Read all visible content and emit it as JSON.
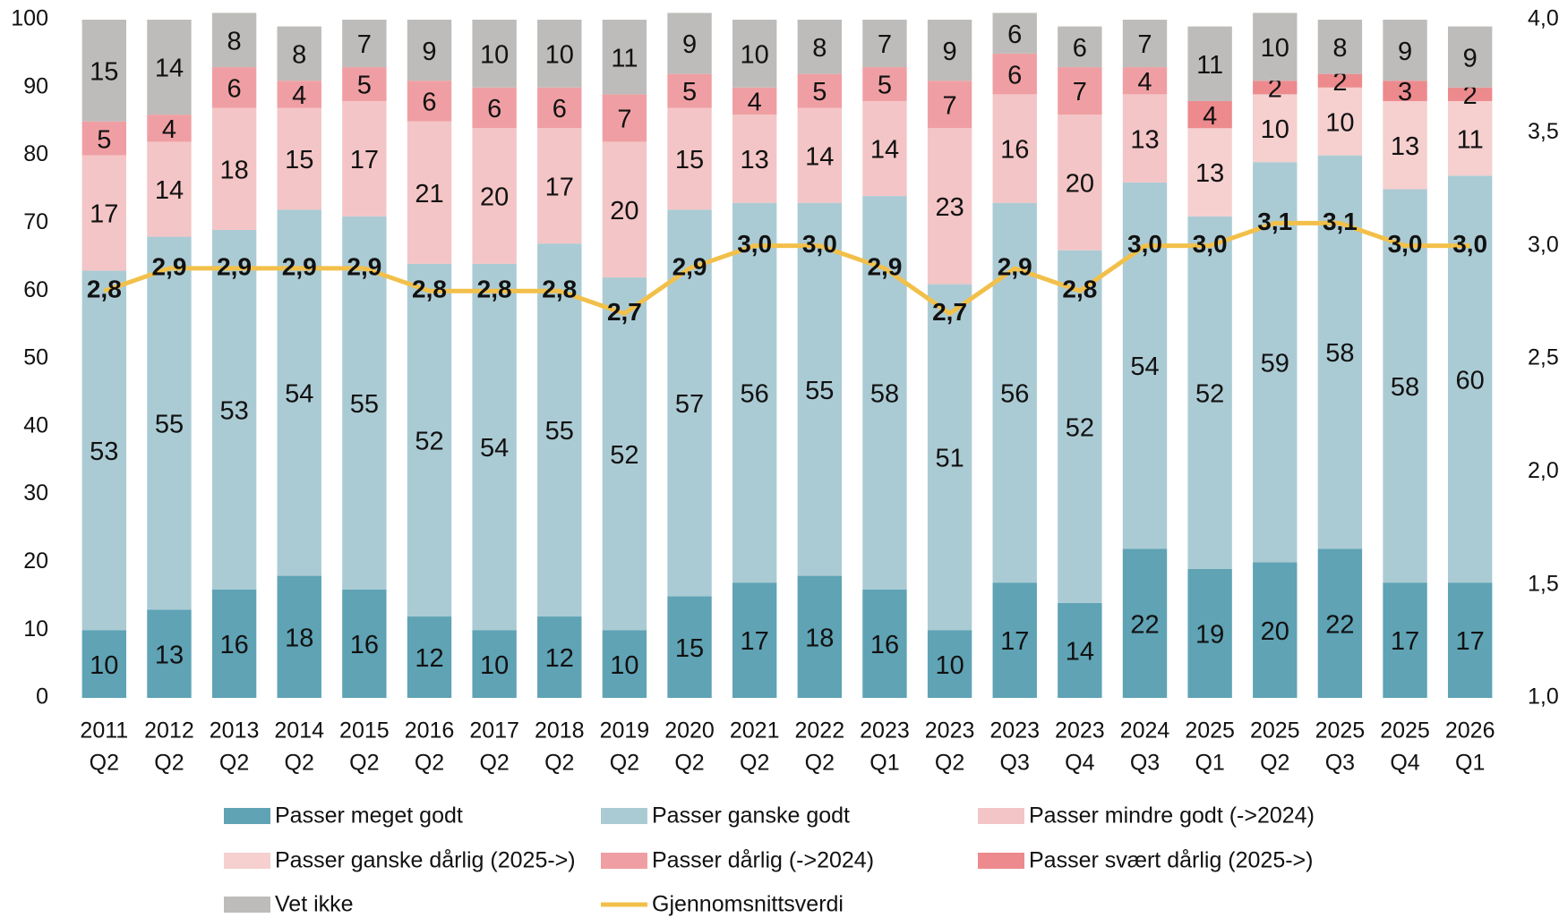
{
  "chart_data": {
    "type": "bar",
    "categories": [
      [
        "2011",
        "Q2"
      ],
      [
        "2012",
        "Q2"
      ],
      [
        "2013",
        "Q2"
      ],
      [
        "2014",
        "Q2"
      ],
      [
        "2015",
        "Q2"
      ],
      [
        "2016",
        "Q2"
      ],
      [
        "2017",
        "Q2"
      ],
      [
        "2018",
        "Q2"
      ],
      [
        "2019",
        "Q2"
      ],
      [
        "2020",
        "Q2"
      ],
      [
        "2021",
        "Q2"
      ],
      [
        "2022",
        "Q2"
      ],
      [
        "2023",
        "Q1"
      ],
      [
        "2023",
        "Q2"
      ],
      [
        "2023",
        "Q3"
      ],
      [
        "2023",
        "Q4"
      ],
      [
        "2024",
        "Q3"
      ],
      [
        "2025",
        "Q1"
      ],
      [
        "2025",
        "Q2"
      ],
      [
        "2025",
        "Q3"
      ],
      [
        "2025",
        "Q4"
      ],
      [
        "2026",
        "Q1"
      ]
    ],
    "series": [
      {
        "name": "Passer meget godt",
        "color": "#5fa3b5",
        "values": [
          10,
          13,
          16,
          18,
          16,
          12,
          10,
          12,
          10,
          15,
          17,
          18,
          16,
          10,
          17,
          14,
          22,
          19,
          20,
          22,
          17,
          17
        ]
      },
      {
        "name": "Passer ganske godt",
        "color": "#abcbd4",
        "values": [
          53,
          55,
          53,
          54,
          55,
          52,
          54,
          55,
          52,
          57,
          56,
          55,
          58,
          51,
          56,
          52,
          54,
          52,
          59,
          58,
          58,
          60
        ]
      },
      {
        "name": "Passer mindre godt (->2024)",
        "color": "#f4c5c6",
        "values": [
          17,
          14,
          18,
          15,
          17,
          21,
          20,
          17,
          20,
          15,
          13,
          14,
          14,
          23,
          16,
          20,
          13,
          null,
          null,
          null,
          null,
          null
        ]
      },
      {
        "name": "Passer ganske dårlig (2025->)",
        "color": "#f6cfcf",
        "values": [
          null,
          null,
          null,
          null,
          null,
          null,
          null,
          null,
          null,
          null,
          null,
          null,
          null,
          null,
          null,
          null,
          null,
          13,
          10,
          10,
          13,
          11
        ]
      },
      {
        "name": "Passer dårlig (->2024)",
        "color": "#ef9fa3",
        "values": [
          5,
          4,
          6,
          4,
          5,
          6,
          6,
          6,
          7,
          5,
          4,
          5,
          5,
          7,
          6,
          7,
          4,
          null,
          null,
          null,
          null,
          null
        ]
      },
      {
        "name": "Passer svært dårlig (2025->)",
        "color": "#ec8a8d",
        "values": [
          null,
          null,
          null,
          null,
          null,
          null,
          null,
          null,
          null,
          null,
          null,
          null,
          null,
          null,
          null,
          null,
          null,
          4,
          2,
          2,
          3,
          2
        ]
      },
      {
        "name": "Vet ikke",
        "color": "#bdbcba",
        "values": [
          15,
          14,
          8,
          8,
          7,
          9,
          10,
          10,
          11,
          9,
          10,
          8,
          7,
          9,
          6,
          6,
          7,
          11,
          10,
          8,
          9,
          9
        ]
      },
      {
        "name": "Gjennomsnittsverdi",
        "color": "#f2c04a",
        "type": "line",
        "axis": "y2",
        "values": [
          2.8,
          2.9,
          2.9,
          2.9,
          2.9,
          2.8,
          2.8,
          2.8,
          2.7,
          2.9,
          3.0,
          3.0,
          2.9,
          2.7,
          2.9,
          2.8,
          3.0,
          3.0,
          3.1,
          3.1,
          3.0,
          3.0
        ],
        "value_labels": [
          "2,8",
          "2,9",
          "2,9",
          "2,9",
          "2,9",
          "2,8",
          "2,8",
          "2,8",
          "2,7",
          "2,9",
          "3,0",
          "3,0",
          "2,9",
          "2,7",
          "2,9",
          "2,8",
          "3,0",
          "3,0",
          "3,1",
          "3,1",
          "3,0",
          "3,0"
        ]
      }
    ],
    "ylim": [
      0,
      100
    ],
    "yticks": [
      0,
      10,
      20,
      30,
      40,
      50,
      60,
      70,
      80,
      90,
      100
    ],
    "y2lim": [
      1,
      4
    ],
    "y2ticks": [
      {
        "value": 1,
        "label": "1,0"
      },
      {
        "value": 1.5,
        "label": "1,5"
      },
      {
        "value": 2,
        "label": "2,0"
      },
      {
        "value": 2.5,
        "label": "2,5"
      },
      {
        "value": 3,
        "label": "3,0"
      },
      {
        "value": 3.5,
        "label": "3,5"
      },
      {
        "value": 4,
        "label": "4,0"
      }
    ],
    "grid": false
  }
}
